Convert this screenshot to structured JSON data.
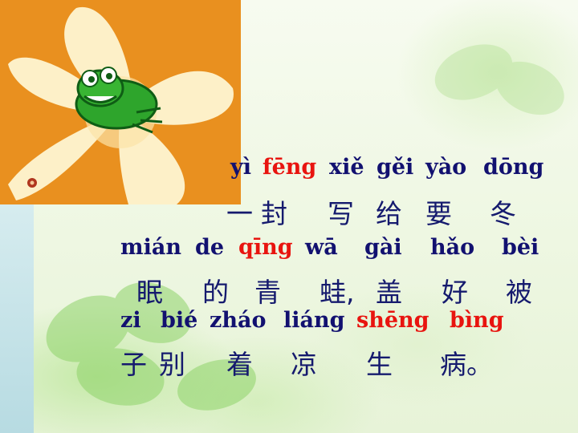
{
  "pinyin_line_1": [
    {
      "text": "yì",
      "red": false
    },
    {
      "text": "fēng",
      "red": true
    },
    {
      "text": "xiě",
      "red": false
    },
    {
      "text": "gěi",
      "red": false
    },
    {
      "text": "yào",
      "red": false
    },
    {
      "text": "dōng",
      "red": false
    }
  ],
  "hanzi_line_1": [
    "一",
    "封",
    "写",
    "给",
    "要",
    "冬"
  ],
  "pinyin_line_2": [
    {
      "text": "mián",
      "red": false
    },
    {
      "text": "de",
      "red": false
    },
    {
      "text": "qīng",
      "red": true
    },
    {
      "text": "wā",
      "red": false
    },
    {
      "text": "gài",
      "red": false
    },
    {
      "text": "hǎo",
      "red": false
    },
    {
      "text": "bèi",
      "red": false
    }
  ],
  "hanzi_line_2": [
    "眠",
    "的",
    "青",
    "蛙,",
    "盖",
    "好",
    "被"
  ],
  "pinyin_line_3": [
    {
      "text": "zi",
      "red": false
    },
    {
      "text": "bié",
      "red": false
    },
    {
      "text": "zháo",
      "red": false
    },
    {
      "text": "liáng",
      "red": false
    },
    {
      "text": "shēng",
      "red": true
    },
    {
      "text": "bìng",
      "red": true
    }
  ],
  "hanzi_line_3": [
    "子",
    "别",
    "着",
    "凉",
    "生",
    "病。"
  ],
  "colors": {
    "text": "#121170",
    "highlight": "#e8140f",
    "orange": "#e9901f"
  },
  "icons": [
    "flower-icon",
    "frog-icon",
    "small-flower-icon",
    "clover-icon"
  ]
}
